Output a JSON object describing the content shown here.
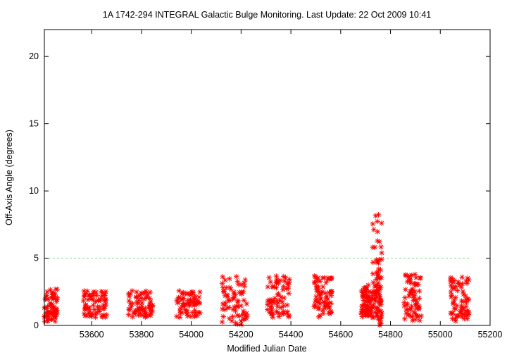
{
  "chart_data": {
    "type": "scatter",
    "title": "1A 1742-294   INTEGRAL Galactic Bulge Monitoring.  Last Update: 22 Oct 2009 10:41",
    "xlabel": "Modified Julian Date",
    "ylabel": "Off-Axis Angle (degrees)",
    "xlim": [
      53410,
      55200
    ],
    "ylim": [
      0,
      22
    ],
    "x_ticks": [
      "53600",
      "53800",
      "54000",
      "54200",
      "54400",
      "54600",
      "54800",
      "55000",
      "55200"
    ],
    "y_ticks": [
      "0",
      "5",
      "10",
      "15",
      "20"
    ],
    "reference_line": {
      "y": 5,
      "style": "dashed",
      "color": "#7fdc7f"
    },
    "marker": "asterisk",
    "marker_color": "#ff0000",
    "grid": false,
    "legend": "none",
    "series": [
      {
        "clusters": [
          {
            "x_range": [
              53410,
              53462
            ],
            "y_range": [
              0.3,
              2.7
            ]
          },
          {
            "x_range": [
              53566,
              53662
            ],
            "y_range": [
              0.6,
              2.6
            ]
          },
          {
            "x_range": [
              53748,
              53845
            ],
            "y_range": [
              0.6,
              2.6
            ]
          },
          {
            "x_range": [
              53940,
              54035
            ],
            "y_range": [
              0.6,
              2.6
            ]
          },
          {
            "x_range": [
              54123,
              54225
            ],
            "y_range": [
              0.0,
              3.7
            ]
          },
          {
            "x_range": [
              54305,
              54395
            ],
            "y_range": [
              0.6,
              3.7
            ]
          },
          {
            "x_range": [
              54493,
              54565
            ],
            "y_range": [
              0.6,
              3.7
            ]
          },
          {
            "x_range": [
              54680,
              54725
            ],
            "y_range": [
              0.6,
              3.0
            ]
          },
          {
            "x_range": [
              54727,
              54765
            ],
            "y_range": [
              0.0,
              8.4
            ]
          },
          {
            "x_range": [
              54855,
              54925
            ],
            "y_range": [
              0.3,
              3.8
            ]
          },
          {
            "x_range": [
              55040,
              55115
            ],
            "y_range": [
              0.3,
              3.6
            ]
          }
        ]
      }
    ]
  }
}
